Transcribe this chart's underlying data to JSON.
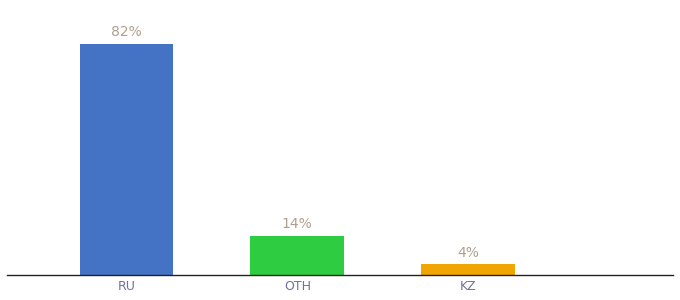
{
  "categories": [
    "RU",
    "OTH",
    "KZ"
  ],
  "values": [
    82,
    14,
    4
  ],
  "bar_colors": [
    "#4472c4",
    "#2ecc40",
    "#f0a500"
  ],
  "labels": [
    "82%",
    "14%",
    "4%"
  ],
  "background_color": "#ffffff",
  "label_color": "#b0a090",
  "label_fontsize": 10,
  "tick_fontsize": 9,
  "tick_color": "#7070a0",
  "ylim": [
    0,
    95
  ],
  "bar_width": 0.55,
  "x_positions": [
    1,
    2,
    3
  ],
  "xlim": [
    0.3,
    4.2
  ]
}
